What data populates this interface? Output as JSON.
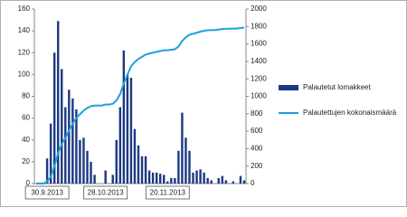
{
  "chart_data": {
    "type": "bar_line",
    "categories": [
      null,
      null,
      null,
      "30.9.2013",
      null,
      null,
      null,
      null,
      null,
      null,
      null,
      null,
      null,
      null,
      null,
      null,
      null,
      null,
      null,
      "28.10.2013",
      null,
      null,
      null,
      null,
      null,
      null,
      null,
      null,
      null,
      null,
      null,
      null,
      null,
      null,
      null,
      null,
      "20.11.2013",
      null,
      null,
      null,
      null,
      null,
      null,
      null,
      null,
      null,
      null,
      null,
      null,
      null,
      null,
      null,
      null,
      null,
      null,
      null,
      null,
      null
    ],
    "series": [
      {
        "name": "Palautetut lomakkeet",
        "color": "#1c3a82",
        "kind": "bar",
        "values": [
          0,
          0,
          0,
          23,
          55,
          120,
          149,
          105,
          70,
          86,
          78,
          68,
          40,
          42,
          30,
          20,
          8,
          0,
          0,
          12,
          0,
          8,
          40,
          70,
          122,
          100,
          97,
          50,
          35,
          25,
          25,
          12,
          10,
          10,
          9,
          8,
          2,
          5,
          5,
          30,
          65,
          42,
          30,
          10,
          12,
          13,
          10,
          5,
          3,
          0,
          5,
          7,
          3,
          0,
          2,
          0,
          7,
          3
        ]
      },
      {
        "name": "Palautettujen kokonaismäärä",
        "color": "#1ea0dc",
        "kind": "line",
        "axis": "y2",
        "values": [
          0,
          0,
          0,
          23,
          78,
          198,
          347,
          452,
          522,
          608,
          686,
          754,
          794,
          836,
          866,
          886,
          894,
          894,
          894,
          906,
          906,
          914,
          954,
          1024,
          1146,
          1246,
          1343,
          1393,
          1428,
          1453,
          1478,
          1490,
          1500,
          1510,
          1519,
          1527,
          1529,
          1534,
          1539,
          1569,
          1634,
          1676,
          1706,
          1716,
          1728,
          1741,
          1751,
          1756,
          1759,
          1759,
          1764,
          1771,
          1774,
          1774,
          1776,
          1776,
          1783,
          1786
        ]
      }
    ],
    "ylim": [
      0,
      160
    ],
    "yticks": [
      0,
      20,
      40,
      60,
      80,
      100,
      120,
      140,
      160
    ],
    "y2lim": [
      0,
      2000
    ],
    "y2ticks": [
      0,
      200,
      400,
      600,
      800,
      1000,
      1200,
      1400,
      1600,
      1800,
      2000
    ],
    "grid": false,
    "legend": "right"
  }
}
